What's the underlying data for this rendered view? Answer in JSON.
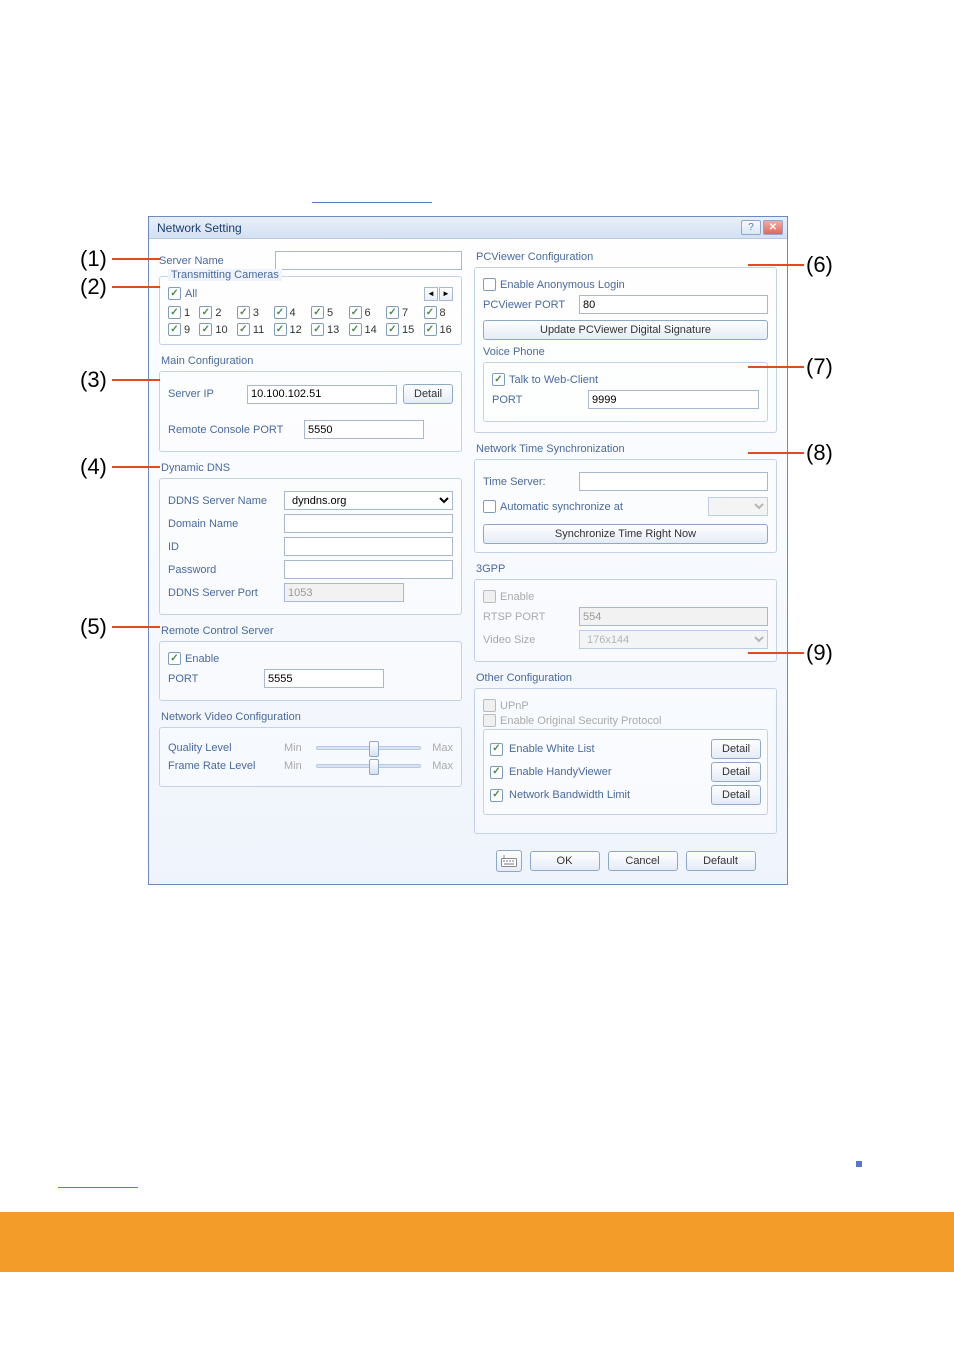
{
  "window": {
    "title": "Network Setting"
  },
  "annotations": {
    "a1": "(1)",
    "a2": "(2)",
    "a3": "(3)",
    "a4": "(4)",
    "a5": "(5)",
    "a6": "(6)",
    "a7": "(7)",
    "a8": "(8)",
    "a9": "(9)"
  },
  "left": {
    "server_name_label": "Server Name",
    "transmitting_cameras_label": "Transmitting Cameras",
    "all_label": "All",
    "cameras": [
      "1",
      "2",
      "3",
      "4",
      "5",
      "6",
      "7",
      "8",
      "9",
      "10",
      "11",
      "12",
      "13",
      "14",
      "15",
      "16"
    ],
    "main_config_title": "Main Configuration",
    "server_ip_label": "Server IP",
    "server_ip_value": "10.100.102.51",
    "detail_btn": "Detail",
    "remote_console_port_label": "Remote Console PORT",
    "remote_console_port_value": "5550",
    "ddns_title": "Dynamic DNS",
    "ddns_server_name_label": "DDNS Server Name",
    "ddns_server_name_value": "dyndns.org",
    "domain_name_label": "Domain Name",
    "id_label": "ID",
    "password_label": "Password",
    "ddns_server_port_label": "DDNS Server Port",
    "ddns_server_port_value": "1053",
    "remote_control_title": "Remote Control Server",
    "enable_label": "Enable",
    "rcs_port_label": "PORT",
    "rcs_port_value": "5555",
    "nvc_title": "Network Video Configuration",
    "quality_label": "Quality Level",
    "frame_rate_label": "Frame Rate Level",
    "min_label": "Min",
    "max_label": "Max"
  },
  "right": {
    "pcviewer_title": "PCViewer Configuration",
    "anon_login_label": "Enable Anonymous Login",
    "pcviewer_port_label": "PCViewer PORT",
    "pcviewer_port_value": "80",
    "update_sig_btn": "Update PCViewer Digital Signature",
    "voice_phone_label": "Voice Phone",
    "talk_web_client_label": "Talk to Web-Client",
    "voice_port_label": "PORT",
    "voice_port_value": "9999",
    "nts_title": "Network Time Synchronization",
    "time_server_label": "Time Server:",
    "auto_sync_label": "Automatic synchronize at",
    "sync_now_btn": "Synchronize Time Right Now",
    "gpp_title": "3GPP",
    "gpp_enable_label": "Enable",
    "rtsp_port_label": "RTSP PORT",
    "rtsp_port_value": "554",
    "video_size_label": "Video Size",
    "video_size_value": "176x144",
    "other_title": "Other Configuration",
    "upnp_label": "UPnP",
    "orig_sec_label": "Enable Original Security Protocol",
    "white_list_label": "Enable White List",
    "handy_viewer_label": "Enable HandyViewer",
    "bandwidth_label": "Network Bandwidth Limit",
    "detail_btn": "Detail",
    "ok_btn": "OK",
    "cancel_btn": "Cancel",
    "default_btn": "Default"
  },
  "colors": {
    "anno_line": "#e14b1f",
    "footer": "#f39c2a",
    "accent": "#4a6a9d",
    "border": "#6b8bbf"
  },
  "slider": {
    "quality_pos_pct": 55,
    "frame_rate_pos_pct": 55
  }
}
